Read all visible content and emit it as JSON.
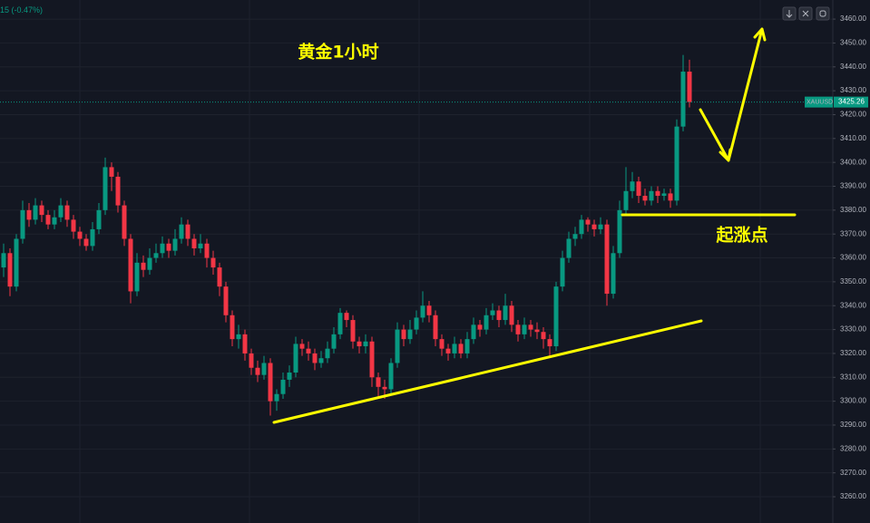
{
  "chart_data": {
    "type": "candlestick",
    "header_fragment": "15 (-0.47%)",
    "title": "黄金1小时",
    "annotation": "起涨点",
    "symbol_label": "XAUUSD",
    "last_price": 3425.26,
    "up_color": "#089981",
    "down_color": "#f23645",
    "annotation_color": "#ffff00",
    "grid": true,
    "ylim": [
      3249,
      3468
    ],
    "yticks": [
      {
        "value": 3260,
        "label": "3260.00"
      },
      {
        "value": 3270,
        "label": "3270.00"
      },
      {
        "value": 3280,
        "label": "3280.00"
      },
      {
        "value": 3290,
        "label": "3290.00"
      },
      {
        "value": 3300,
        "label": "3300.00"
      },
      {
        "value": 3310,
        "label": "3310.00"
      },
      {
        "value": 3320,
        "label": "3320.00"
      },
      {
        "value": 3330,
        "label": "3330.00"
      },
      {
        "value": 3340,
        "label": "3340.00"
      },
      {
        "value": 3350,
        "label": "3350.00"
      },
      {
        "value": 3360,
        "label": "3360.00"
      },
      {
        "value": 3370,
        "label": "3370.00"
      },
      {
        "value": 3380,
        "label": "3380.00"
      },
      {
        "value": 3390,
        "label": "3390.00"
      },
      {
        "value": 3400,
        "label": "3400.00"
      },
      {
        "value": 3410,
        "label": "3410.00"
      },
      {
        "value": 3420,
        "label": "3420.00"
      },
      {
        "value": 3430,
        "label": "3430.00"
      },
      {
        "value": 3440,
        "label": "3440.00"
      },
      {
        "value": 3450,
        "label": "3450.00"
      },
      {
        "value": 3460,
        "label": "3460.00"
      }
    ],
    "open": [
      3356,
      3362,
      3348,
      3368,
      3380,
      3376,
      3382,
      3378,
      3374,
      3377,
      3382,
      3376,
      3371,
      3368,
      3365,
      3372,
      3380,
      3398,
      3394,
      3382,
      3368,
      3346,
      3358,
      3355,
      3360,
      3362,
      3366,
      3363,
      3368,
      3374,
      3368,
      3364,
      3366,
      3360,
      3356,
      3348,
      3336,
      3326,
      3328,
      3320,
      3314,
      3311,
      3316,
      3300,
      3303,
      3309,
      3312,
      3324,
      3322,
      3320,
      3316,
      3318,
      3322,
      3328,
      3337,
      3334,
      3325,
      3323,
      3325,
      3310,
      3306,
      3305,
      3316,
      3330,
      3326,
      3330,
      3335,
      3340,
      3336,
      3326,
      3322,
      3320,
      3324,
      3320,
      3326,
      3332,
      3330,
      3336,
      3338,
      3334,
      3340,
      3332,
      3328,
      3332,
      3330,
      3329,
      3326,
      3323,
      3348,
      3360,
      3368,
      3370,
      3376,
      3374,
      3372,
      3374,
      3345,
      3362,
      3380,
      3388,
      3392,
      3386,
      3384,
      3388,
      3386,
      3387,
      3384,
      3415,
      3438
    ],
    "high": [
      3366,
      3364,
      3370,
      3384,
      3383,
      3385,
      3384,
      3380,
      3380,
      3385,
      3384,
      3378,
      3373,
      3370,
      3375,
      3383,
      3402,
      3400,
      3396,
      3384,
      3370,
      3362,
      3361,
      3364,
      3366,
      3369,
      3368,
      3372,
      3377,
      3376,
      3370,
      3370,
      3368,
      3363,
      3358,
      3350,
      3338,
      3332,
      3330,
      3322,
      3317,
      3319,
      3318,
      3305,
      3312,
      3315,
      3327,
      3326,
      3325,
      3322,
      3321,
      3325,
      3331,
      3339,
      3338,
      3336,
      3327,
      3328,
      3327,
      3312,
      3309,
      3318,
      3333,
      3332,
      3334,
      3338,
      3346,
      3342,
      3338,
      3328,
      3324,
      3327,
      3326,
      3329,
      3335,
      3334,
      3339,
      3341,
      3340,
      3345,
      3342,
      3334,
      3335,
      3334,
      3333,
      3331,
      3328,
      3350,
      3363,
      3371,
      3373,
      3378,
      3377,
      3376,
      3377,
      3376,
      3365,
      3384,
      3398,
      3396,
      3394,
      3389,
      3390,
      3390,
      3389,
      3389,
      3418,
      3445,
      3443
    ],
    "low": [
      3352,
      3344,
      3346,
      3366,
      3373,
      3374,
      3375,
      3372,
      3372,
      3375,
      3373,
      3368,
      3365,
      3363,
      3363,
      3370,
      3378,
      3388,
      3379,
      3365,
      3341,
      3344,
      3352,
      3353,
      3358,
      3360,
      3360,
      3361,
      3366,
      3365,
      3361,
      3362,
      3356,
      3353,
      3344,
      3333,
      3323,
      3322,
      3317,
      3311,
      3308,
      3309,
      3294,
      3296,
      3301,
      3306,
      3310,
      3319,
      3317,
      3313,
      3314,
      3316,
      3320,
      3326,
      3331,
      3322,
      3320,
      3320,
      3306,
      3302,
      3301,
      3303,
      3314,
      3323,
      3324,
      3328,
      3333,
      3333,
      3323,
      3319,
      3317,
      3318,
      3318,
      3318,
      3324,
      3327,
      3328,
      3334,
      3331,
      3332,
      3329,
      3325,
      3326,
      3327,
      3326,
      3322,
      3319,
      3321,
      3346,
      3358,
      3365,
      3368,
      3371,
      3369,
      3370,
      3340,
      3343,
      3360,
      3378,
      3385,
      3383,
      3382,
      3382,
      3383,
      3384,
      3381,
      3382,
      3413,
      3423
    ],
    "close": [
      3362,
      3348,
      3368,
      3380,
      3376,
      3382,
      3378,
      3374,
      3377,
      3382,
      3376,
      3371,
      3368,
      3365,
      3372,
      3380,
      3398,
      3394,
      3382,
      3368,
      3346,
      3358,
      3355,
      3360,
      3362,
      3366,
      3363,
      3368,
      3374,
      3368,
      3364,
      3366,
      3360,
      3356,
      3348,
      3336,
      3326,
      3328,
      3320,
      3314,
      3311,
      3316,
      3300,
      3303,
      3309,
      3312,
      3324,
      3322,
      3320,
      3316,
      3318,
      3322,
      3328,
      3337,
      3334,
      3325,
      3323,
      3325,
      3310,
      3306,
      3305,
      3316,
      3330,
      3326,
      3330,
      3335,
      3340,
      3336,
      3326,
      3322,
      3320,
      3324,
      3320,
      3326,
      3332,
      3330,
      3336,
      3338,
      3334,
      3340,
      3332,
      3328,
      3332,
      3330,
      3329,
      3326,
      3323,
      3348,
      3360,
      3368,
      3370,
      3376,
      3374,
      3372,
      3374,
      3345,
      3362,
      3380,
      3388,
      3392,
      3386,
      3384,
      3388,
      3386,
      3387,
      3384,
      3415,
      3438,
      3425.26
    ]
  }
}
